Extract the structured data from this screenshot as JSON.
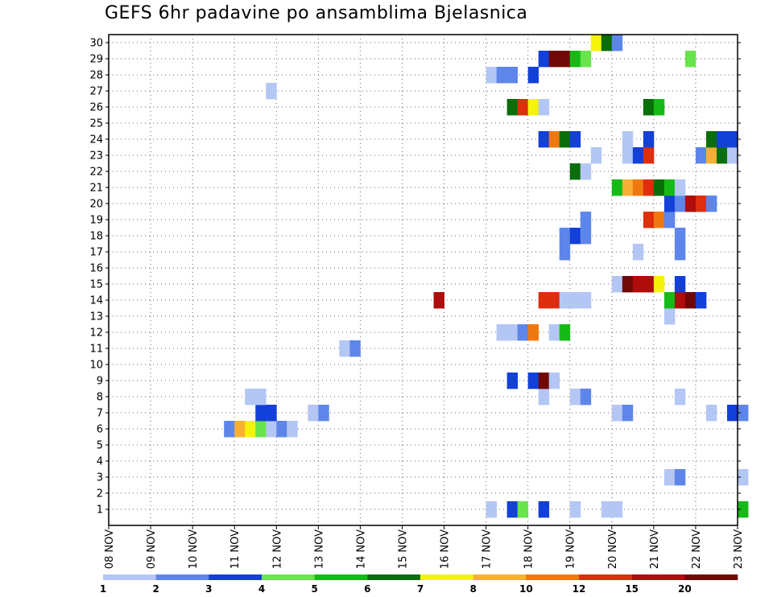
{
  "chart_data": {
    "type": "heatmap",
    "title": "GEFS 6hr padavine po ansamblima Bjelasnica",
    "xlabel": "",
    "ylabel": "",
    "x_ticks": [
      "08 NOV",
      "09 NOV",
      "10 NOV",
      "11 NOV",
      "12 NOV",
      "13 NOV",
      "14 NOV",
      "15 NOV",
      "16 NOV",
      "17 NOV",
      "18 NOV",
      "19 NOV",
      "20 NOV",
      "21 NOV",
      "22 NOV",
      "23 NOV"
    ],
    "y_ticks": [
      "1",
      "2",
      "3",
      "4",
      "5",
      "6",
      "7",
      "8",
      "9",
      "10",
      "11",
      "12",
      "13",
      "14",
      "15",
      "16",
      "17",
      "18",
      "19",
      "20",
      "21",
      "22",
      "23",
      "24",
      "25",
      "26",
      "27",
      "28",
      "29",
      "30"
    ],
    "time_step_hours": 6,
    "grid": true,
    "colorbar": {
      "labels": [
        "1",
        "2",
        "3",
        "4",
        "5",
        "6",
        "7",
        "8",
        "10",
        "12",
        "15",
        "20"
      ],
      "colors": [
        "#b4c6f4",
        "#5e86ea",
        "#1240d8",
        "#68e44c",
        "#16ba16",
        "#0a6e0a",
        "#f4f40a",
        "#f8b034",
        "#f07810",
        "#de2e0e",
        "#b00c0c",
        "#700808"
      ]
    },
    "cells_note": "each cell: [member, x (days since 08 NOV 00z), level index into colorbar colors]",
    "cells": [
      [
        1,
        9.0,
        0
      ],
      [
        1,
        9.5,
        2
      ],
      [
        1,
        9.75,
        3
      ],
      [
        1,
        10.25,
        2
      ],
      [
        1,
        11.0,
        0
      ],
      [
        1,
        11.75,
        0
      ],
      [
        1,
        12.0,
        0
      ],
      [
        1,
        15.0,
        4
      ],
      [
        3,
        13.25,
        0
      ],
      [
        3,
        13.5,
        1
      ],
      [
        3,
        15.0,
        0
      ],
      [
        6,
        2.75,
        1
      ],
      [
        6,
        3.0,
        7
      ],
      [
        6,
        3.25,
        6
      ],
      [
        6,
        3.5,
        3
      ],
      [
        6,
        3.75,
        0
      ],
      [
        6,
        4.0,
        1
      ],
      [
        6,
        4.25,
        0
      ],
      [
        7,
        3.5,
        2
      ],
      [
        7,
        3.75,
        2
      ],
      [
        7,
        4.75,
        0
      ],
      [
        7,
        5.0,
        1
      ],
      [
        7,
        12.0,
        0
      ],
      [
        7,
        12.25,
        1
      ],
      [
        7,
        14.25,
        0
      ],
      [
        7,
        14.75,
        2
      ],
      [
        7,
        15.0,
        1
      ],
      [
        8,
        3.25,
        0
      ],
      [
        8,
        3.5,
        0
      ],
      [
        8,
        10.25,
        0
      ],
      [
        8,
        11.0,
        0
      ],
      [
        8,
        11.25,
        1
      ],
      [
        8,
        13.5,
        0
      ],
      [
        9,
        9.5,
        2
      ],
      [
        9,
        10.0,
        2
      ],
      [
        9,
        10.25,
        11
      ],
      [
        9,
        10.5,
        0
      ],
      [
        11,
        5.5,
        0
      ],
      [
        11,
        5.75,
        1
      ],
      [
        12,
        9.25,
        0
      ],
      [
        12,
        9.5,
        0
      ],
      [
        12,
        9.75,
        1
      ],
      [
        12,
        10.0,
        8
      ],
      [
        12,
        10.5,
        0
      ],
      [
        12,
        10.75,
        4
      ],
      [
        13,
        13.25,
        0
      ],
      [
        14,
        7.75,
        10
      ],
      [
        14,
        10.25,
        9
      ],
      [
        14,
        10.5,
        9
      ],
      [
        14,
        10.75,
        0
      ],
      [
        14,
        11.0,
        0
      ],
      [
        14,
        11.25,
        0
      ],
      [
        14,
        13.25,
        4
      ],
      [
        14,
        13.5,
        10
      ],
      [
        14,
        13.75,
        11
      ],
      [
        14,
        14.0,
        2
      ],
      [
        15,
        12.0,
        0
      ],
      [
        15,
        12.25,
        11
      ],
      [
        15,
        12.5,
        10
      ],
      [
        15,
        12.75,
        10
      ],
      [
        15,
        13.0,
        6
      ],
      [
        15,
        13.5,
        2
      ],
      [
        17,
        10.75,
        1
      ],
      [
        17,
        12.5,
        0
      ],
      [
        17,
        13.5,
        1
      ],
      [
        18,
        10.75,
        1
      ],
      [
        18,
        11.0,
        2
      ],
      [
        18,
        11.25,
        1
      ],
      [
        18,
        13.5,
        1
      ],
      [
        19,
        11.25,
        1
      ],
      [
        19,
        12.75,
        9
      ],
      [
        19,
        13.0,
        8
      ],
      [
        19,
        13.25,
        1
      ],
      [
        20,
        13.25,
        2
      ],
      [
        20,
        13.5,
        1
      ],
      [
        20,
        13.75,
        10
      ],
      [
        20,
        14.0,
        9
      ],
      [
        20,
        14.25,
        1
      ],
      [
        21,
        12.0,
        4
      ],
      [
        21,
        12.25,
        7
      ],
      [
        21,
        12.5,
        8
      ],
      [
        21,
        12.75,
        9
      ],
      [
        21,
        13.0,
        5
      ],
      [
        21,
        13.25,
        4
      ],
      [
        21,
        13.5,
        0
      ],
      [
        22,
        11.0,
        5
      ],
      [
        22,
        11.25,
        0
      ],
      [
        23,
        11.5,
        0
      ],
      [
        23,
        12.25,
        0
      ],
      [
        23,
        12.5,
        2
      ],
      [
        23,
        12.75,
        9
      ],
      [
        23,
        14.0,
        1
      ],
      [
        23,
        14.25,
        7
      ],
      [
        23,
        14.5,
        5
      ],
      [
        23,
        14.75,
        0
      ],
      [
        24,
        10.25,
        2
      ],
      [
        24,
        10.5,
        8
      ],
      [
        24,
        10.75,
        5
      ],
      [
        24,
        11.0,
        2
      ],
      [
        24,
        12.25,
        0
      ],
      [
        24,
        12.75,
        2
      ],
      [
        24,
        14.25,
        5
      ],
      [
        24,
        14.5,
        2
      ],
      [
        24,
        14.75,
        2
      ],
      [
        26,
        9.5,
        5
      ],
      [
        26,
        9.75,
        9
      ],
      [
        26,
        10.0,
        6
      ],
      [
        26,
        10.25,
        0
      ],
      [
        26,
        12.75,
        5
      ],
      [
        26,
        13.0,
        4
      ],
      [
        27,
        3.75,
        0
      ],
      [
        28,
        9.0,
        0
      ],
      [
        28,
        9.25,
        1
      ],
      [
        28,
        9.5,
        1
      ],
      [
        28,
        10.0,
        2
      ],
      [
        29,
        10.25,
        2
      ],
      [
        29,
        10.5,
        11
      ],
      [
        29,
        10.75,
        11
      ],
      [
        29,
        11.0,
        4
      ],
      [
        29,
        11.25,
        3
      ],
      [
        29,
        13.75,
        3
      ],
      [
        30,
        11.5,
        6
      ],
      [
        30,
        11.75,
        5
      ],
      [
        30,
        12.0,
        1
      ]
    ]
  }
}
